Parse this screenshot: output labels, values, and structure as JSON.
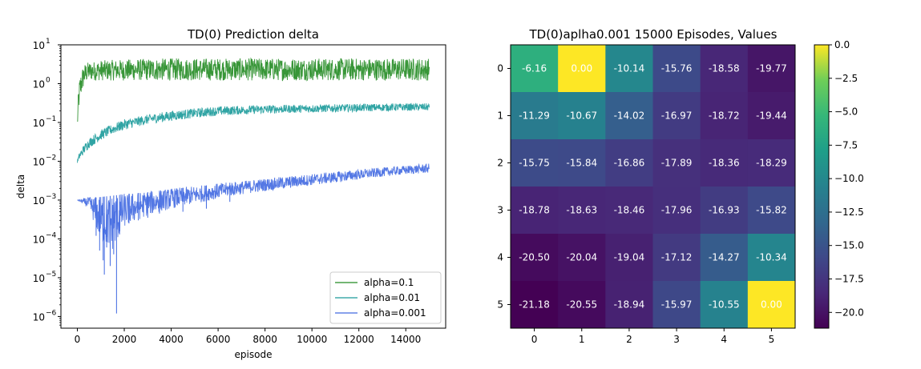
{
  "chart_data": [
    {
      "type": "line",
      "title": "TD(0) Prediction delta",
      "xlabel": "episode",
      "ylabel": "delta",
      "xlim": [
        -700,
        15700
      ],
      "ylim": [
        5e-07,
        10
      ],
      "yscale": "log",
      "xticks": [
        "0",
        "2000",
        "4000",
        "6000",
        "8000",
        "10000",
        "12000",
        "14000"
      ],
      "yticks": [
        {
          "base": "10",
          "exp": "1"
        },
        {
          "base": "10",
          "exp": "0"
        },
        {
          "base": "10",
          "exp": "−1"
        },
        {
          "base": "10",
          "exp": "−2"
        },
        {
          "base": "10",
          "exp": "−3"
        },
        {
          "base": "10",
          "exp": "−4"
        },
        {
          "base": "10",
          "exp": "−5"
        },
        {
          "base": "10",
          "exp": "−6"
        }
      ],
      "legend_position": "lower-right",
      "series": [
        {
          "name": "alpha=0.1",
          "color": "#228b22",
          "x": [
            0,
            50,
            100,
            200,
            300,
            400,
            500,
            600,
            800,
            1000,
            1500,
            2000,
            3000,
            4000,
            5000,
            6000,
            8000,
            10000,
            12000,
            14000,
            15000
          ],
          "y": [
            0.1,
            0.4,
            0.8,
            1.5,
            2.0,
            2.3,
            2.5,
            2.6,
            2.7,
            2.8,
            2.9,
            2.9,
            3.0,
            3.0,
            3.0,
            3.0,
            3.0,
            3.0,
            3.0,
            3.0,
            3.0
          ],
          "band_low": [
            0.06,
            0.15,
            0.3,
            0.6,
            0.9,
            1.1,
            1.2,
            1.2,
            1.2,
            1.2,
            1.2,
            1.2,
            1.2,
            1.2,
            1.2,
            1.2,
            1.2,
            1.2,
            1.2,
            1.2,
            1.2
          ],
          "band_high": [
            0.15,
            0.8,
            1.5,
            2.5,
            3.2,
            3.5,
            3.6,
            3.7,
            3.8,
            4.0,
            4.1,
            4.2,
            4.4,
            4.5,
            4.5,
            4.5,
            4.5,
            4.5,
            4.5,
            4.5,
            4.5
          ]
        },
        {
          "name": "alpha=0.01",
          "color": "#1a9a9a",
          "x": [
            0,
            100,
            300,
            500,
            1000,
            1500,
            2000,
            3000,
            4000,
            5000,
            6000,
            8000,
            10000,
            12000,
            14000,
            15000
          ],
          "y": [
            0.01,
            0.014,
            0.022,
            0.03,
            0.05,
            0.07,
            0.09,
            0.12,
            0.15,
            0.17,
            0.19,
            0.21,
            0.23,
            0.24,
            0.25,
            0.25
          ],
          "band_low": [
            0.009,
            0.011,
            0.016,
            0.022,
            0.035,
            0.05,
            0.065,
            0.09,
            0.11,
            0.13,
            0.15,
            0.17,
            0.18,
            0.19,
            0.2,
            0.2
          ],
          "band_high": [
            0.011,
            0.018,
            0.028,
            0.04,
            0.065,
            0.09,
            0.12,
            0.16,
            0.2,
            0.23,
            0.26,
            0.28,
            0.29,
            0.3,
            0.31,
            0.31
          ]
        },
        {
          "name": "alpha=0.001",
          "color": "#4169e1",
          "x": [
            0,
            500,
            1000,
            1500,
            2000,
            3000,
            4000,
            5000,
            6000,
            7000,
            8000,
            9000,
            10000,
            11000,
            12000,
            13000,
            14000,
            15000
          ],
          "y": [
            0.001,
            0.0011,
            0.0012,
            0.0013,
            0.0014,
            0.0016,
            0.0019,
            0.0022,
            0.0026,
            0.003,
            0.0035,
            0.004,
            0.0046,
            0.0053,
            0.006,
            0.0068,
            0.0076,
            0.0085
          ],
          "band_low": [
            0.001,
            0.0006,
            8e-05,
            5e-05,
            0.0002,
            0.0004,
            0.0006,
            0.0008,
            0.0011,
            0.0014,
            0.0017,
            0.002,
            0.0024,
            0.0028,
            0.0034,
            0.004,
            0.0046,
            0.005
          ],
          "band_high": [
            0.001,
            0.0012,
            0.0013,
            0.0014,
            0.0015,
            0.0017,
            0.002,
            0.0023,
            0.0027,
            0.0031,
            0.0036,
            0.0041,
            0.0047,
            0.0054,
            0.0061,
            0.0069,
            0.0077,
            0.0088
          ],
          "spikes": [
            {
              "x": 1670,
              "y": 1.2e-06
            },
            {
              "x": 1150,
              "y": 1.2e-05
            },
            {
              "x": 1100,
              "y": 2.8e-05
            },
            {
              "x": 950,
              "y": 5e-05
            },
            {
              "x": 1250,
              "y": 6e-05
            },
            {
              "x": 1400,
              "y": 2e-05
            },
            {
              "x": 1550,
              "y": 4e-05
            },
            {
              "x": 800,
              "y": 0.00012
            },
            {
              "x": 1800,
              "y": 0.00013
            },
            {
              "x": 2200,
              "y": 0.00025
            },
            {
              "x": 2600,
              "y": 0.0003
            },
            {
              "x": 3000,
              "y": 0.00035
            },
            {
              "x": 3500,
              "y": 0.00045
            },
            {
              "x": 4500,
              "y": 0.0005
            },
            {
              "x": 5500,
              "y": 0.0006
            },
            {
              "x": 6500,
              "y": 0.0009
            }
          ]
        }
      ]
    },
    {
      "type": "heatmap",
      "title": "TD(0)aplha0.001 15000 Episodes, Values",
      "xticks": [
        "0",
        "1",
        "2",
        "3",
        "4",
        "5"
      ],
      "yticks": [
        "0",
        "1",
        "2",
        "3",
        "4",
        "5"
      ],
      "vmin": -21.18,
      "vmax": 0.0,
      "colormap": "viridis",
      "colorbar_ticks": [
        "0.0",
        "−2.5",
        "−5.0",
        "−7.5",
        "−10.0",
        "−12.5",
        "−15.0",
        "−17.5",
        "−20.0"
      ],
      "colorbar_values": [
        0,
        -2.5,
        -5,
        -7.5,
        -10,
        -12.5,
        -15,
        -17.5,
        -20
      ],
      "values": [
        [
          -6.16,
          0.0,
          -10.14,
          -15.76,
          -18.58,
          -19.77
        ],
        [
          -11.29,
          -10.67,
          -14.02,
          -16.97,
          -18.72,
          -19.44
        ],
        [
          -15.75,
          -15.84,
          -16.86,
          -17.89,
          -18.36,
          -18.29
        ],
        [
          -18.78,
          -18.63,
          -18.46,
          -17.96,
          -16.93,
          -15.82
        ],
        [
          -20.5,
          -20.04,
          -19.04,
          -17.12,
          -14.27,
          -10.34
        ],
        [
          -21.18,
          -20.55,
          -18.94,
          -15.97,
          -10.55,
          0.0
        ]
      ],
      "labels": [
        [
          "-6.16",
          "0.00",
          "-10.14",
          "-15.76",
          "-18.58",
          "-19.77"
        ],
        [
          "-11.29",
          "-10.67",
          "-14.02",
          "-16.97",
          "-18.72",
          "-19.44"
        ],
        [
          "-15.75",
          "-15.84",
          "-16.86",
          "-17.89",
          "-18.36",
          "-18.29"
        ],
        [
          "-18.78",
          "-18.63",
          "-18.46",
          "-17.96",
          "-16.93",
          "-15.82"
        ],
        [
          "-20.50",
          "-20.04",
          "-19.04",
          "-17.12",
          "-14.27",
          "-10.34"
        ],
        [
          "-21.18",
          "-20.55",
          "-18.94",
          "-15.97",
          "-10.55",
          "0.00"
        ]
      ]
    }
  ]
}
